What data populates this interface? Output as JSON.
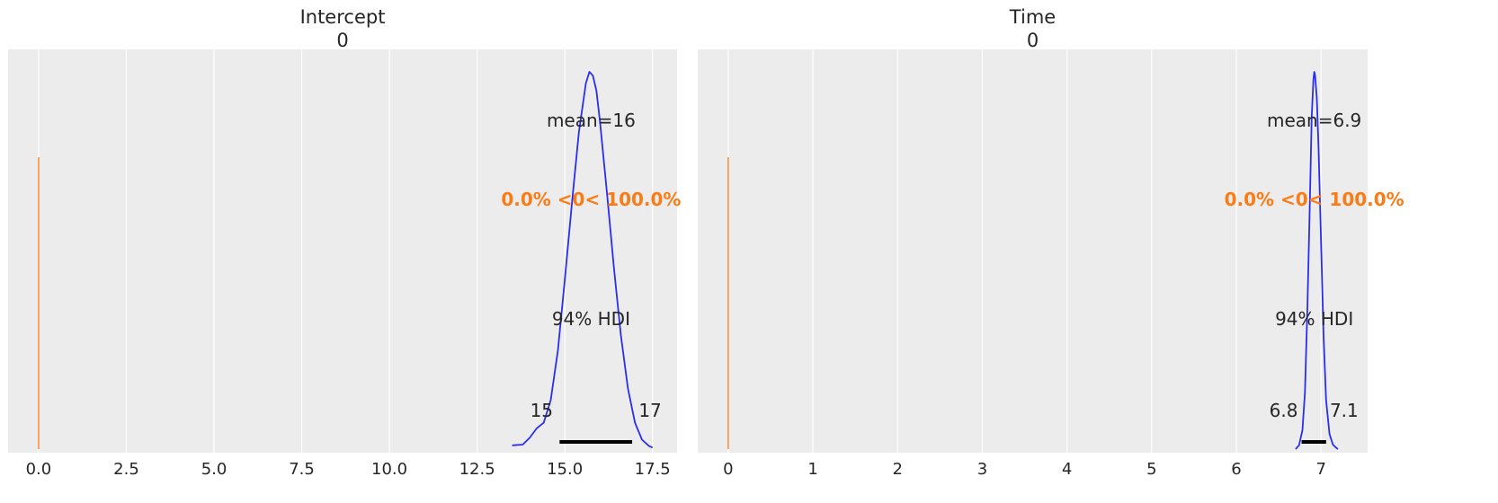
{
  "chart_data": [
    {
      "type": "posterior",
      "title_line1": "Intercept",
      "title_line2": "0",
      "xlim": [
        -0.87,
        18.2
      ],
      "xticks": [
        0.0,
        2.5,
        5.0,
        7.5,
        10.0,
        12.5,
        15.0,
        17.5
      ],
      "xtick_labels": [
        "0.0",
        "2.5",
        "5.0",
        "7.5",
        "10.0",
        "12.5",
        "15.0",
        "17.5"
      ],
      "ref_val": 0,
      "ref_label": "0.0% <0< 100.0%",
      "mean_label": "mean=16",
      "hdi_label": "94% HDI",
      "hdi": [
        14.85,
        16.92
      ],
      "hdi_low_label": "15",
      "hdi_high_label": "17",
      "mean": 15.75,
      "density": {
        "x": [
          13.5,
          13.8,
          14.0,
          14.2,
          14.4,
          14.6,
          14.8,
          15.0,
          15.2,
          15.4,
          15.6,
          15.7,
          15.8,
          15.9,
          16.0,
          16.2,
          16.4,
          16.6,
          16.8,
          17.0,
          17.2,
          17.4,
          17.5
        ],
        "y": [
          0.01,
          0.012,
          0.03,
          0.055,
          0.07,
          0.13,
          0.26,
          0.45,
          0.65,
          0.84,
          0.97,
          1.0,
          0.99,
          0.95,
          0.87,
          0.68,
          0.48,
          0.3,
          0.16,
          0.07,
          0.025,
          0.008,
          0.004
        ]
      }
    },
    {
      "type": "posterior",
      "title_line1": "Time",
      "title_line2": "0",
      "xlim": [
        -0.36,
        7.55
      ],
      "xticks": [
        0,
        1,
        2,
        3,
        4,
        5,
        6,
        7
      ],
      "xtick_labels": [
        "0",
        "1",
        "2",
        "3",
        "4",
        "5",
        "6",
        "7"
      ],
      "ref_val": 0,
      "ref_label": "0.0% <0< 100.0%",
      "mean_label": "mean=6.9",
      "hdi_label": "94% HDI",
      "hdi": [
        6.77,
        7.06
      ],
      "hdi_low_label": "6.8",
      "hdi_high_label": "7.1",
      "mean": 6.92,
      "density": {
        "x": [
          6.7,
          6.74,
          6.78,
          6.81,
          6.84,
          6.87,
          6.89,
          6.91,
          6.92,
          6.93,
          6.95,
          6.97,
          7.0,
          7.03,
          7.06,
          7.1,
          7.14,
          7.18,
          7.2
        ],
        "y": [
          0.0,
          0.01,
          0.05,
          0.15,
          0.38,
          0.68,
          0.88,
          0.98,
          1.0,
          0.99,
          0.93,
          0.8,
          0.55,
          0.3,
          0.13,
          0.04,
          0.012,
          0.003,
          0.0
        ]
      }
    }
  ],
  "colors": {
    "background": "#ffffff",
    "panel": "#ececec",
    "grid": "#ffffff",
    "density": "#2a2eec",
    "reference": "#fa7c17",
    "hdi_bar": "#000000",
    "text": "#262626"
  }
}
